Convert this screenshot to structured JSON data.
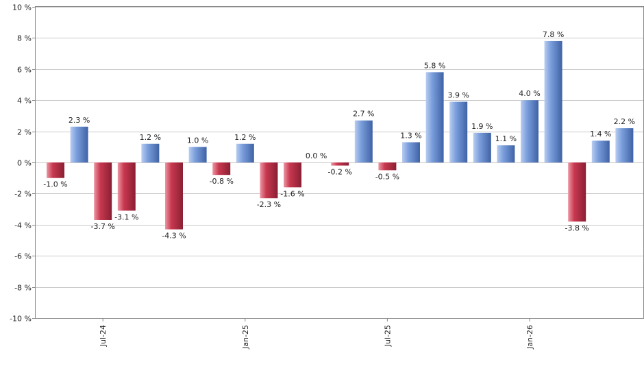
{
  "chart_data": {
    "type": "bar",
    "unit": "%",
    "ylim": [
      -10,
      10
    ],
    "y_ticks": [
      -10,
      -8,
      -6,
      -4,
      -2,
      0,
      2,
      4,
      6,
      8,
      10
    ],
    "y_tick_labels": [
      "-10 %",
      "-8 %",
      "-6 %",
      "-4 %",
      "-2 %",
      "0 %",
      "2 %",
      "4 %",
      "6 %",
      "8 %",
      "10 %"
    ],
    "x_tick_labels": [
      {
        "label": "Jul-24",
        "index": 2
      },
      {
        "label": "Jan-25",
        "index": 8
      },
      {
        "label": "Jul-25",
        "index": 14
      },
      {
        "label": "Jan-26",
        "index": 20
      }
    ],
    "grid": true,
    "values": [
      -1.0,
      2.3,
      -3.7,
      -3.1,
      1.2,
      -4.3,
      1.0,
      -0.8,
      1.2,
      -2.3,
      -1.6,
      0.0,
      -0.2,
      2.7,
      -0.5,
      1.3,
      5.8,
      3.9,
      1.9,
      1.1,
      4.0,
      7.8,
      -3.8,
      1.4,
      2.2
    ],
    "data_labels": [
      "-1.0 %",
      "2.3 %",
      "-3.7 %",
      "-3.1 %",
      "1.2 %",
      "-4.3 %",
      "1.0 %",
      "-0.8 %",
      "1.2 %",
      "-2.3 %",
      "-1.6 %",
      "0.0 %",
      "-0.2 %",
      "2.7 %",
      "-0.5 %",
      "1.3 %",
      "5.8 %",
      "3.9 %",
      "1.9 %",
      "1.1 %",
      "4.0 %",
      "7.8 %",
      "-3.8 %",
      "1.4 %",
      "2.2 %"
    ],
    "colors": {
      "positive": "#7b9fdc",
      "positive_light": "#b9cdf0",
      "positive_dark": "#3f62a6",
      "negative": "#c8384f",
      "negative_light": "#ec97a4",
      "negative_dark": "#8a1f33"
    }
  }
}
